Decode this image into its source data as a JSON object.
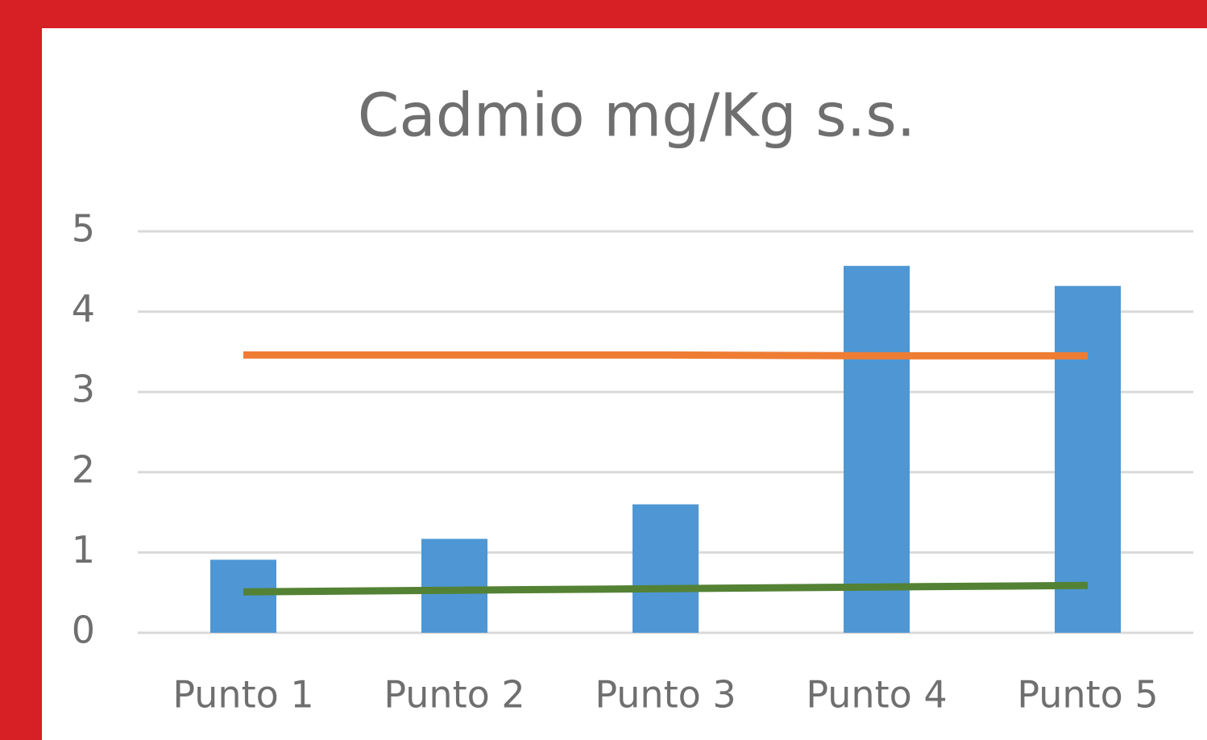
{
  "chart_data": {
    "type": "bar",
    "title": "Cadmio mg/Kg s.s.",
    "categories": [
      "Punto 1",
      "Punto 2",
      "Punto 3",
      "Punto 4",
      "Punto 5"
    ],
    "values": [
      0.91,
      1.17,
      1.6,
      4.57,
      4.32
    ],
    "color": "#4e97d4",
    "lines": [
      {
        "type": "line",
        "color": "#ee7d33",
        "values": [
          3.46,
          3.46,
          3.46,
          3.45,
          3.45
        ]
      },
      {
        "type": "line",
        "color": "#548235",
        "values": [
          0.51,
          0.53,
          0.55,
          0.57,
          0.59
        ]
      }
    ],
    "ylim": [
      0,
      5
    ],
    "yticks": [
      0,
      1,
      2,
      3,
      4,
      5
    ],
    "grid": true
  }
}
